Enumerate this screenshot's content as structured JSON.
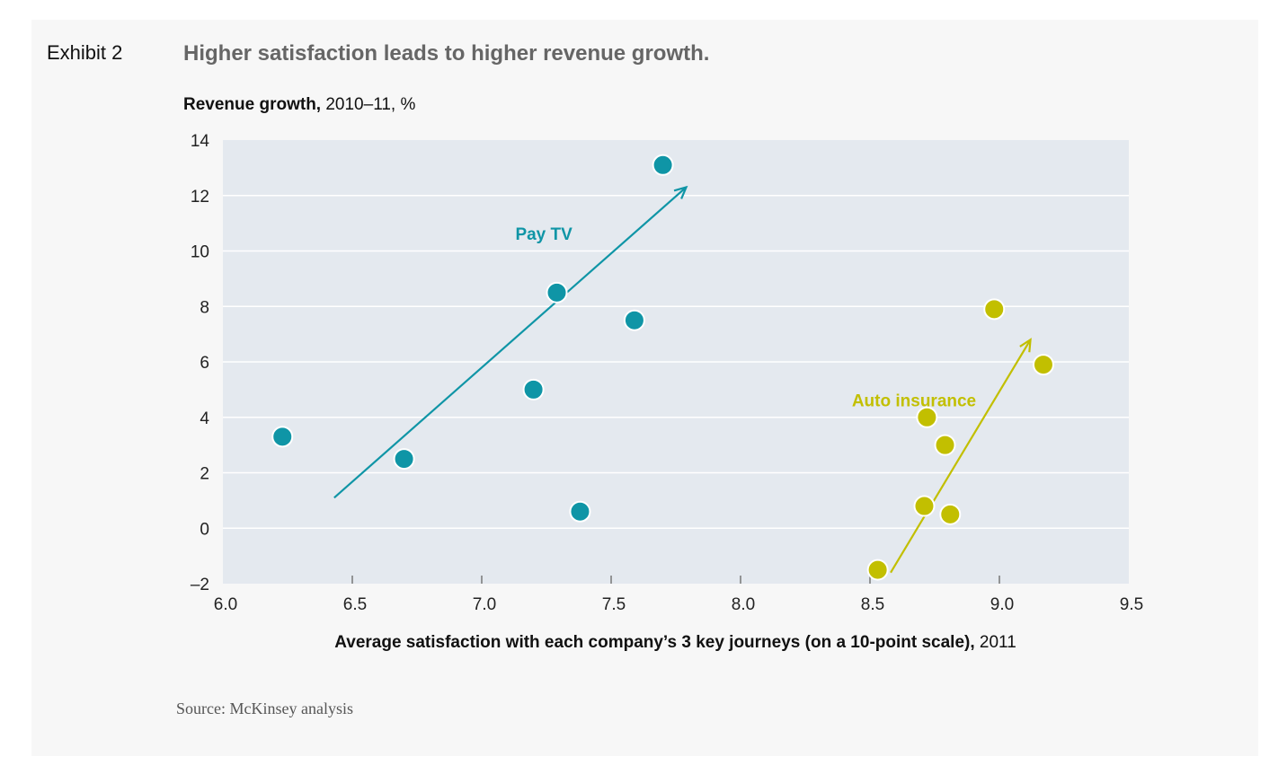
{
  "exhibit_label": "Exhibit 2",
  "title": "Higher satisfaction leads to higher revenue growth.",
  "source": "Source: McKinsey analysis",
  "chart_data": {
    "type": "scatter",
    "ylabel_bold": "Revenue growth,",
    "ylabel_rest": " 2010–11, %",
    "xlabel_bold": "Average satisfaction with each company’s 3 key journeys (on a 10-point scale),",
    "xlabel_rest": " 2011",
    "xlim": [
      6.0,
      9.5
    ],
    "ylim": [
      -2,
      14
    ],
    "xticks": [
      "6.0",
      "6.5",
      "7.0",
      "7.5",
      "8.0",
      "8.5",
      "9.0",
      "9.5"
    ],
    "yticks": [
      "14",
      "12",
      "10",
      "8",
      "6",
      "4",
      "2",
      "0",
      "–2"
    ],
    "grid": true,
    "plot_background": "#e4e9ef",
    "series": [
      {
        "name": "Pay TV",
        "color": "#0f95a6",
        "points": [
          [
            6.23,
            3.3
          ],
          [
            6.7,
            2.5
          ],
          [
            7.2,
            5.0
          ],
          [
            7.29,
            8.5
          ],
          [
            7.38,
            0.6
          ],
          [
            7.59,
            7.5
          ],
          [
            7.7,
            13.1
          ]
        ],
        "trend_arrow": [
          [
            6.43,
            1.1
          ],
          [
            7.79,
            12.3
          ]
        ]
      },
      {
        "name": "Auto insurance",
        "color": "#c2bf00",
        "points": [
          [
            8.53,
            -1.5
          ],
          [
            8.71,
            0.8
          ],
          [
            8.81,
            0.5
          ],
          [
            8.72,
            4.0
          ],
          [
            8.79,
            3.0
          ],
          [
            8.98,
            7.9
          ],
          [
            9.17,
            5.9
          ]
        ],
        "trend_arrow": [
          [
            8.58,
            -1.6
          ],
          [
            9.12,
            6.8
          ]
        ]
      }
    ]
  }
}
